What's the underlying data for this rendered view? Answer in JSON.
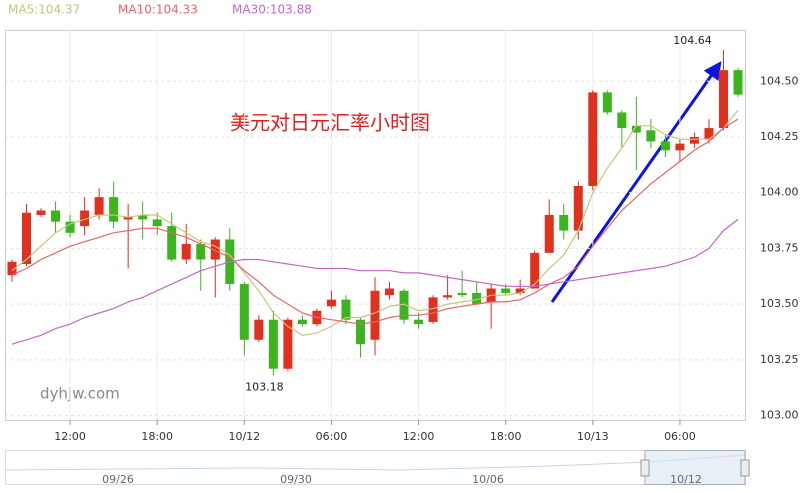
{
  "chart_data": {
    "type": "candlestick",
    "title": "美元对日元汇率小时图",
    "watermark": "dyhjw.com",
    "categories": [
      null,
      null,
      null,
      null,
      "12:00",
      null,
      null,
      null,
      null,
      null,
      "18:00",
      null,
      null,
      null,
      null,
      null,
      "10/12",
      null,
      null,
      null,
      null,
      null,
      "06:00",
      null,
      null,
      null,
      null,
      null,
      "12:00",
      null,
      null,
      null,
      null,
      null,
      "18:00",
      null,
      null,
      null,
      null,
      null,
      "10/13",
      null,
      null,
      null,
      null,
      null,
      "06:00",
      null,
      null,
      null,
      null
    ],
    "open": [
      103.63,
      103.68,
      103.9,
      103.92,
      103.87,
      103.85,
      103.9,
      103.98,
      103.88,
      103.9,
      103.88,
      103.85,
      103.7,
      103.77,
      103.7,
      103.79,
      103.59,
      103.34,
      103.43,
      103.21,
      103.43,
      103.41,
      103.49,
      103.52,
      103.43,
      103.34,
      103.54,
      103.56,
      103.43,
      103.42,
      103.53,
      103.55,
      103.55,
      103.51,
      103.57,
      103.55,
      103.57,
      103.73,
      103.9,
      103.83,
      104.03,
      104.45,
      104.36,
      104.3,
      104.28,
      104.23,
      104.19,
      104.22,
      104.24,
      104.29,
      104.55
    ],
    "high": [
      103.7,
      103.95,
      103.93,
      103.96,
      103.9,
      103.98,
      104.02,
      104.05,
      103.95,
      103.96,
      103.91,
      103.91,
      103.86,
      103.79,
      103.8,
      103.84,
      103.6,
      103.45,
      103.47,
      103.44,
      103.45,
      103.48,
      103.56,
      103.54,
      103.44,
      103.62,
      103.6,
      103.57,
      103.46,
      103.54,
      103.63,
      103.65,
      103.6,
      103.59,
      103.59,
      103.61,
      103.74,
      103.97,
      103.95,
      104.05,
      104.46,
      104.46,
      104.37,
      104.43,
      104.33,
      104.26,
      104.24,
      104.27,
      104.33,
      104.64,
      104.56
    ],
    "low": [
      103.6,
      103.67,
      103.89,
      103.82,
      103.8,
      103.81,
      103.88,
      103.84,
      103.66,
      103.79,
      103.81,
      103.69,
      103.68,
      103.56,
      103.53,
      103.56,
      103.27,
      103.33,
      103.18,
      103.2,
      103.4,
      103.4,
      103.48,
      103.41,
      103.26,
      103.27,
      103.52,
      103.41,
      103.39,
      103.41,
      103.52,
      103.53,
      103.5,
      103.39,
      103.54,
      103.54,
      103.57,
      103.73,
      103.79,
      103.79,
      104.01,
      104.35,
      104.2,
      104.1,
      104.2,
      104.16,
      104.14,
      104.2,
      104.22,
      104.28,
      104.43
    ],
    "close": [
      103.69,
      103.91,
      103.92,
      103.87,
      103.82,
      103.92,
      103.98,
      103.87,
      103.89,
      103.88,
      103.85,
      103.7,
      103.77,
      103.7,
      103.79,
      103.59,
      103.34,
      103.43,
      103.21,
      103.43,
      103.41,
      103.47,
      103.52,
      103.43,
      103.32,
      103.56,
      103.57,
      103.43,
      103.41,
      103.53,
      103.54,
      103.54,
      103.5,
      103.57,
      103.55,
      103.57,
      103.73,
      103.9,
      103.83,
      104.03,
      104.45,
      104.36,
      104.29,
      104.27,
      104.23,
      104.19,
      104.22,
      104.25,
      104.29,
      104.55,
      104.44
    ],
    "up_color": "#e0301e",
    "down_color": "#3cb41e",
    "series": [
      {
        "name": "MA5:104.37",
        "color": "#c8c47a",
        "values": [
          103.65,
          103.7,
          103.76,
          103.82,
          103.86,
          103.88,
          103.9,
          103.9,
          103.89,
          103.9,
          103.9,
          103.86,
          103.82,
          103.78,
          103.76,
          103.72,
          103.64,
          103.56,
          103.46,
          103.4,
          103.36,
          103.37,
          103.4,
          103.44,
          103.44,
          103.46,
          103.49,
          103.5,
          103.47,
          103.48,
          103.5,
          103.51,
          103.52,
          103.54,
          103.54,
          103.55,
          103.59,
          103.66,
          103.72,
          103.83,
          104.0,
          104.11,
          104.2,
          104.3,
          104.3,
          104.26,
          104.24,
          104.24,
          104.24,
          104.29,
          104.37
        ]
      },
      {
        "name": "MA10:104.33",
        "color": "#e8646a",
        "values": [
          103.63,
          103.66,
          103.7,
          103.73,
          103.76,
          103.78,
          103.8,
          103.82,
          103.83,
          103.84,
          103.84,
          103.82,
          103.8,
          103.77,
          103.74,
          103.71,
          103.65,
          103.6,
          103.54,
          103.5,
          103.46,
          103.44,
          103.43,
          103.42,
          103.41,
          103.42,
          103.44,
          103.45,
          103.45,
          103.46,
          103.48,
          103.49,
          103.5,
          103.51,
          103.51,
          103.52,
          103.55,
          103.59,
          103.62,
          103.67,
          103.76,
          103.84,
          103.92,
          103.98,
          104.04,
          104.09,
          104.14,
          104.19,
          104.23,
          104.29,
          104.33
        ]
      },
      {
        "name": "MA30:103.88",
        "color": "#c468c8",
        "values": [
          103.32,
          103.34,
          103.36,
          103.39,
          103.41,
          103.44,
          103.46,
          103.48,
          103.51,
          103.53,
          103.56,
          103.59,
          103.62,
          103.65,
          103.67,
          103.69,
          103.7,
          103.7,
          103.69,
          103.68,
          103.67,
          103.66,
          103.66,
          103.66,
          103.65,
          103.65,
          103.65,
          103.64,
          103.64,
          103.63,
          103.62,
          103.61,
          103.6,
          103.59,
          103.58,
          103.58,
          103.58,
          103.59,
          103.6,
          103.61,
          103.62,
          103.63,
          103.64,
          103.65,
          103.66,
          103.67,
          103.69,
          103.71,
          103.75,
          103.83,
          103.88
        ]
      }
    ],
    "annotations": [
      {
        "text": "104.64",
        "index": 49,
        "value": 104.64
      },
      {
        "text": "103.18",
        "index": 18,
        "value": 103.18
      }
    ],
    "ylim": [
      102.98,
      104.73
    ],
    "yticks": [
      {
        "value": 103.0,
        "label": "103.00"
      },
      {
        "value": 103.25,
        "label": "103.25"
      },
      {
        "value": 103.5,
        "label": "103.50"
      },
      {
        "value": 103.75,
        "label": "103.75"
      },
      {
        "value": 104.0,
        "label": "104.00"
      },
      {
        "value": 104.25,
        "label": "104.25"
      },
      {
        "value": 104.5,
        "label": "104.50"
      }
    ],
    "grid": true,
    "navigator_labels": [
      "09/26",
      "09/30",
      "10/06",
      "10/12"
    ]
  }
}
